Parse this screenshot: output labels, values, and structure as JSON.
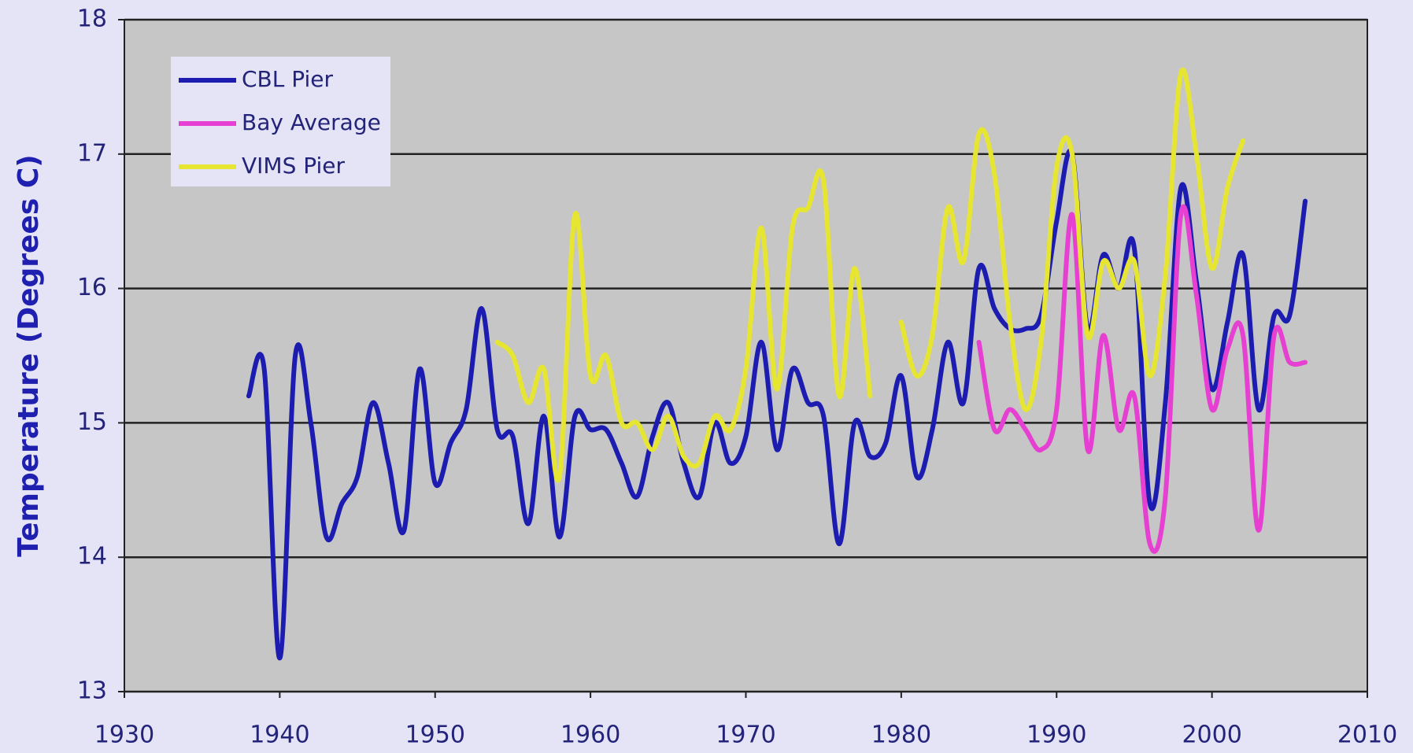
{
  "chart_data": {
    "type": "line",
    "ylabel": "Temperature (Degrees C)",
    "x": [
      1938,
      1939,
      1940,
      1941,
      1942,
      1943,
      1944,
      1945,
      1946,
      1947,
      1948,
      1949,
      1950,
      1951,
      1952,
      1953,
      1954,
      1955,
      1956,
      1957,
      1958,
      1959,
      1960,
      1961,
      1962,
      1963,
      1964,
      1965,
      1966,
      1967,
      1968,
      1969,
      1970,
      1971,
      1972,
      1973,
      1974,
      1975,
      1976,
      1977,
      1978,
      1979,
      1980,
      1981,
      1982,
      1983,
      1984,
      1985,
      1986,
      1987,
      1988,
      1989,
      1990,
      1991,
      1992,
      1993,
      1994,
      1995,
      1996,
      1997,
      1998,
      1999,
      2000,
      2001,
      2002,
      2003,
      2004,
      2005,
      2006
    ],
    "series": [
      {
        "name": "CBL Pier",
        "color": "#1c1cb0",
        "values": [
          15.2,
          15.4,
          13.25,
          15.5,
          15.0,
          14.15,
          14.4,
          14.6,
          15.15,
          14.7,
          14.2,
          15.4,
          14.55,
          14.85,
          15.1,
          15.85,
          14.95,
          14.9,
          14.25,
          15.05,
          14.15,
          15.05,
          14.95,
          14.95,
          14.7,
          14.45,
          14.9,
          15.15,
          14.7,
          14.45,
          15.0,
          14.7,
          14.9,
          15.6,
          14.8,
          15.4,
          15.15,
          15.05,
          14.1,
          15.0,
          14.75,
          14.85,
          15.35,
          14.6,
          14.95,
          15.6,
          15.15,
          16.15,
          15.85,
          15.7,
          15.7,
          15.8,
          16.5,
          17.0,
          15.7,
          16.25,
          16.0,
          16.3,
          14.4,
          15.15,
          16.75,
          16.05,
          15.25,
          15.75,
          16.25,
          15.1,
          15.8,
          15.8,
          16.65
        ]
      },
      {
        "name": "Bay Average",
        "color": "#e640d2",
        "values": [
          null,
          null,
          null,
          null,
          null,
          null,
          null,
          null,
          null,
          null,
          null,
          null,
          null,
          null,
          null,
          null,
          null,
          null,
          null,
          null,
          null,
          null,
          null,
          null,
          null,
          null,
          null,
          null,
          null,
          null,
          null,
          null,
          null,
          null,
          null,
          null,
          null,
          null,
          null,
          null,
          null,
          null,
          null,
          null,
          null,
          null,
          null,
          15.6,
          14.95,
          15.1,
          14.95,
          14.8,
          15.1,
          16.55,
          14.8,
          15.65,
          14.95,
          15.2,
          14.1,
          14.45,
          16.55,
          15.95,
          15.1,
          15.55,
          15.65,
          14.2,
          15.65,
          15.45,
          15.45
        ]
      },
      {
        "name": "VIMS Pier",
        "color": "#e6e632",
        "values": [
          null,
          null,
          null,
          null,
          null,
          null,
          null,
          null,
          null,
          null,
          null,
          null,
          null,
          null,
          null,
          null,
          15.6,
          15.5,
          15.15,
          15.4,
          14.6,
          16.55,
          15.35,
          15.5,
          15.0,
          15.0,
          14.8,
          15.05,
          14.75,
          14.7,
          15.05,
          14.95,
          15.4,
          16.45,
          15.25,
          16.45,
          16.6,
          16.8,
          15.2,
          16.15,
          15.2,
          null,
          15.75,
          15.35,
          15.65,
          16.6,
          16.2,
          17.15,
          16.85,
          15.75,
          15.1,
          15.6,
          16.9,
          17.0,
          15.65,
          16.2,
          16.0,
          16.2,
          15.35,
          16.1,
          17.6,
          17.0,
          16.15,
          16.75,
          17.1,
          null,
          null,
          null,
          null
        ]
      }
    ],
    "xlim": [
      1930,
      2010
    ],
    "xticks": [
      1930,
      1940,
      1950,
      1960,
      1970,
      1980,
      1990,
      2000,
      2010
    ],
    "ylim": [
      13,
      18
    ],
    "yticks": [
      13,
      14,
      15,
      16,
      17,
      18
    ],
    "grid": true,
    "legend": "upper left"
  }
}
